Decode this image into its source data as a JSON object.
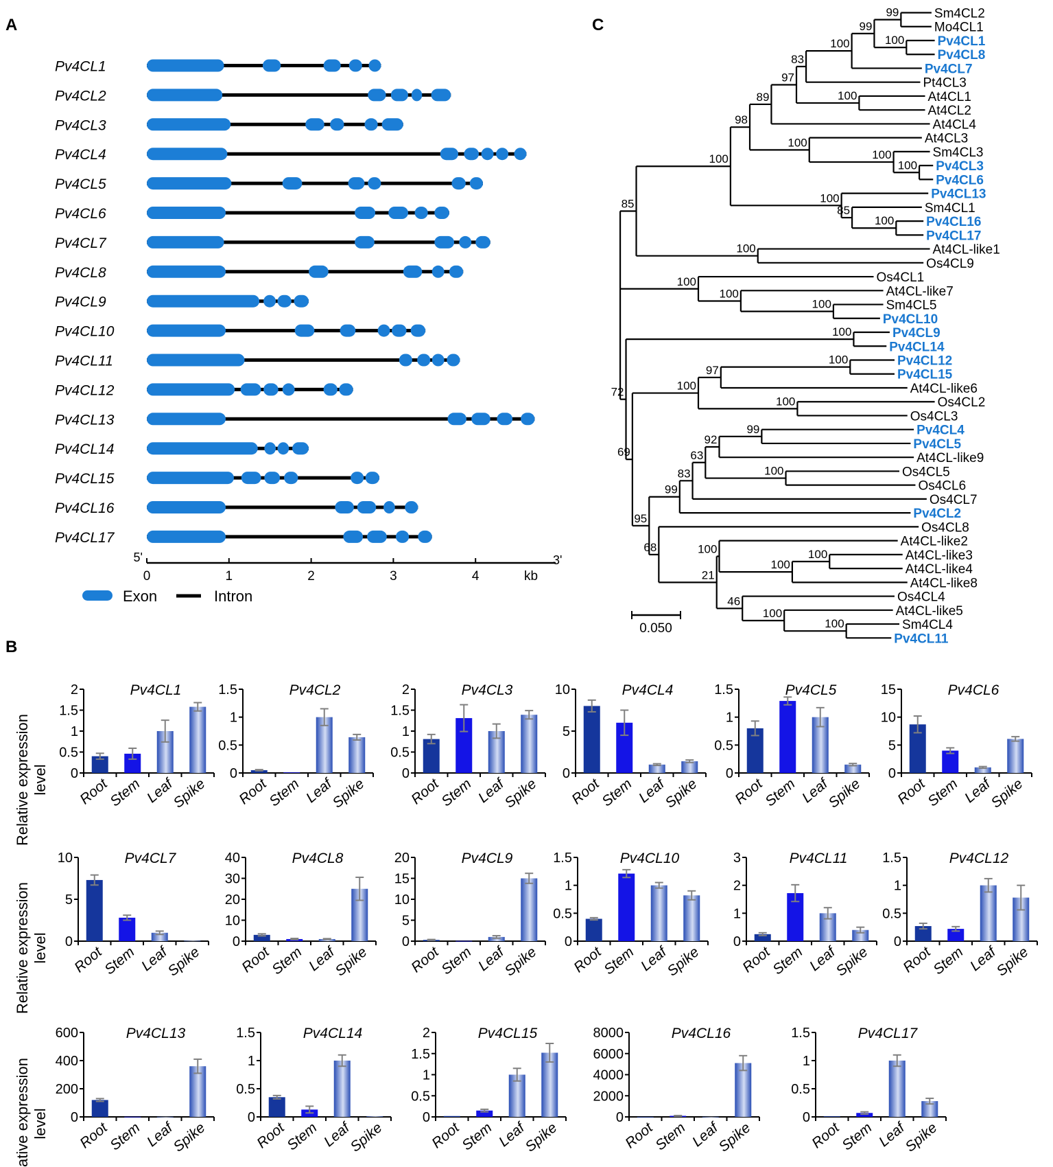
{
  "panel_labels": {
    "a": "A",
    "b": "B",
    "c": "C"
  },
  "colors": {
    "exon": "#1c7ed6",
    "intron": "#000000",
    "highlight": "#1a78d0",
    "root_bar": "#15369c",
    "stem_bar": "#1414e6",
    "gradient_dark": "#2b4fb5",
    "gradient_light": "#d4ddf4",
    "error_bar": "#808080"
  },
  "gene_structure": {
    "scale_start": "5'",
    "scale_end": "3'",
    "unit": "kb",
    "ticks": [
      "0",
      "1",
      "2",
      "3",
      "4"
    ],
    "legend": {
      "exon": "Exon",
      "intron": "Intron"
    },
    "genes": [
      {
        "name": "Pv4CL1",
        "exons": [
          [
            0,
            0.94
          ],
          [
            1.41,
            1.63
          ],
          [
            2.15,
            2.36
          ],
          [
            2.46,
            2.62
          ],
          [
            2.7,
            2.85
          ]
        ]
      },
      {
        "name": "Pv4CL2",
        "exons": [
          [
            0,
            0.92
          ],
          [
            2.69,
            2.91
          ],
          [
            2.97,
            3.18
          ],
          [
            3.22,
            3.35
          ],
          [
            3.46,
            3.7
          ]
        ]
      },
      {
        "name": "Pv4CL3",
        "exons": [
          [
            0,
            1.02
          ],
          [
            1.93,
            2.16
          ],
          [
            2.23,
            2.4
          ],
          [
            2.65,
            2.81
          ],
          [
            2.86,
            3.12
          ]
        ]
      },
      {
        "name": "Pv4CL4",
        "exons": [
          [
            0,
            0.98
          ],
          [
            3.57,
            3.79
          ],
          [
            3.86,
            4.04
          ],
          [
            4.07,
            4.22
          ],
          [
            4.25,
            4.4
          ],
          [
            4.47,
            4.62
          ]
        ]
      },
      {
        "name": "Pv4CL5",
        "exons": [
          [
            0,
            1.03
          ],
          [
            1.65,
            1.89
          ],
          [
            2.45,
            2.65
          ],
          [
            2.69,
            2.85
          ],
          [
            3.71,
            3.88
          ],
          [
            3.93,
            4.09
          ]
        ]
      },
      {
        "name": "Pv4CL6",
        "exons": [
          [
            0,
            0.96
          ],
          [
            2.53,
            2.78
          ],
          [
            2.94,
            3.18
          ],
          [
            3.26,
            3.42
          ],
          [
            3.5,
            3.68
          ]
        ]
      },
      {
        "name": "Pv4CL7",
        "exons": [
          [
            0,
            0.94
          ],
          [
            2.53,
            2.77
          ],
          [
            3.5,
            3.74
          ],
          [
            3.8,
            3.95
          ],
          [
            4.0,
            4.18
          ]
        ]
      },
      {
        "name": "Pv4CL8",
        "exons": [
          [
            0,
            0.96
          ],
          [
            1.97,
            2.21
          ],
          [
            3.12,
            3.35
          ],
          [
            3.47,
            3.62
          ],
          [
            3.68,
            3.85
          ]
        ]
      },
      {
        "name": "Pv4CL9",
        "exons": [
          [
            0,
            1.37
          ],
          [
            1.42,
            1.57
          ],
          [
            1.59,
            1.76
          ],
          [
            1.79,
            1.97
          ]
        ]
      },
      {
        "name": "Pv4CL10",
        "exons": [
          [
            0,
            0.96
          ],
          [
            1.8,
            2.04
          ],
          [
            2.35,
            2.54
          ],
          [
            2.81,
            2.96
          ],
          [
            2.98,
            3.16
          ],
          [
            3.21,
            3.39
          ]
        ]
      },
      {
        "name": "Pv4CL11",
        "exons": [
          [
            0,
            1.19
          ],
          [
            3.07,
            3.23
          ],
          [
            3.29,
            3.45
          ],
          [
            3.47,
            3.62
          ],
          [
            3.65,
            3.81
          ]
        ]
      },
      {
        "name": "Pv4CL12",
        "exons": [
          [
            0,
            1.07
          ],
          [
            1.14,
            1.39
          ],
          [
            1.42,
            1.6
          ],
          [
            1.65,
            1.8
          ],
          [
            2.15,
            2.32
          ],
          [
            2.34,
            2.51
          ]
        ]
      },
      {
        "name": "Pv4CL13",
        "exons": [
          [
            0,
            0.96
          ],
          [
            3.66,
            3.89
          ],
          [
            3.95,
            4.18
          ],
          [
            4.26,
            4.45
          ],
          [
            4.55,
            4.72
          ]
        ]
      },
      {
        "name": "Pv4CL14",
        "exons": [
          [
            0,
            1.35
          ],
          [
            1.43,
            1.57
          ],
          [
            1.59,
            1.73
          ],
          [
            1.77,
            1.97
          ]
        ]
      },
      {
        "name": "Pv4CL15",
        "exons": [
          [
            0,
            1.06
          ],
          [
            1.15,
            1.39
          ],
          [
            1.43,
            1.62
          ],
          [
            1.67,
            1.84
          ],
          [
            2.48,
            2.64
          ],
          [
            2.66,
            2.83
          ]
        ]
      },
      {
        "name": "Pv4CL16",
        "exons": [
          [
            0,
            0.96
          ],
          [
            2.29,
            2.52
          ],
          [
            2.56,
            2.79
          ],
          [
            2.88,
            3.02
          ],
          [
            3.14,
            3.3
          ]
        ]
      },
      {
        "name": "Pv4CL17",
        "exons": [
          [
            0,
            0.96
          ],
          [
            2.39,
            2.63
          ],
          [
            2.68,
            2.92
          ],
          [
            3.03,
            3.19
          ],
          [
            3.3,
            3.47
          ]
        ]
      }
    ]
  },
  "tree": {
    "scale_bar": "0.050",
    "leaves": [
      {
        "name": "Sm4CL2",
        "pv": false
      },
      {
        "name": "Mo4CL1",
        "pv": false
      },
      {
        "name": "Pv4CL1",
        "pv": true
      },
      {
        "name": "Pv4CL8",
        "pv": true
      },
      {
        "name": "Pv4CL7",
        "pv": true
      },
      {
        "name": "Pt4CL3",
        "pv": false
      },
      {
        "name": "At4CL1",
        "pv": false
      },
      {
        "name": "At4CL2",
        "pv": false
      },
      {
        "name": "At4CL4",
        "pv": false
      },
      {
        "name": "At4CL3",
        "pv": false
      },
      {
        "name": "Sm4CL3",
        "pv": false
      },
      {
        "name": "Pv4CL3",
        "pv": true
      },
      {
        "name": "Pv4CL6",
        "pv": true
      },
      {
        "name": "Pv4CL13",
        "pv": true
      },
      {
        "name": "Sm4CL1",
        "pv": false
      },
      {
        "name": "Pv4CL16",
        "pv": true
      },
      {
        "name": "Pv4CL17",
        "pv": true
      },
      {
        "name": "At4CL-like1",
        "pv": false
      },
      {
        "name": "Os4CL9",
        "pv": false
      },
      {
        "name": "Os4CL1",
        "pv": false
      },
      {
        "name": "At4CL-like7",
        "pv": false
      },
      {
        "name": "Sm4CL5",
        "pv": false
      },
      {
        "name": "Pv4CL10",
        "pv": true
      },
      {
        "name": "Pv4CL9",
        "pv": true
      },
      {
        "name": "Pv4CL14",
        "pv": true
      },
      {
        "name": "Pv4CL12",
        "pv": true
      },
      {
        "name": "Pv4CL15",
        "pv": true
      },
      {
        "name": "At4CL-like6",
        "pv": false
      },
      {
        "name": "Os4CL2",
        "pv": false
      },
      {
        "name": "Os4CL3",
        "pv": false
      },
      {
        "name": "Pv4CL4",
        "pv": true
      },
      {
        "name": "Pv4CL5",
        "pv": true
      },
      {
        "name": "At4CL-like9",
        "pv": false
      },
      {
        "name": "Os4CL5",
        "pv": false
      },
      {
        "name": "Os4CL6",
        "pv": false
      },
      {
        "name": "Os4CL7",
        "pv": false
      },
      {
        "name": "Pv4CL2",
        "pv": true
      },
      {
        "name": "Os4CL8",
        "pv": false
      },
      {
        "name": "At4CL-like2",
        "pv": false
      },
      {
        "name": "At4CL-like3",
        "pv": false
      },
      {
        "name": "At4CL-like4",
        "pv": false
      },
      {
        "name": "At4CL-like8",
        "pv": false
      },
      {
        "name": "Os4CL4",
        "pv": false
      },
      {
        "name": "At4CL-like5",
        "pv": false
      },
      {
        "name": "Sm4CL4",
        "pv": false
      },
      {
        "name": "Pv4CL11",
        "pv": true
      }
    ],
    "bootstrap": [
      "99",
      "100",
      "99",
      "100",
      "83",
      "100",
      "97",
      "89",
      "100",
      "100",
      "100",
      "98",
      "100",
      "85",
      "100",
      "100",
      "100",
      "85",
      "100",
      "100",
      "100",
      "100",
      "100",
      "97",
      "100",
      "100",
      "99",
      "92",
      "100",
      "63",
      "83",
      "99",
      "100",
      "100",
      "100",
      "100",
      "100",
      "46",
      "21",
      "68",
      "95",
      "69",
      "72"
    ]
  },
  "chart_data": [
    {
      "type": "bar",
      "title": "Pv4CL1",
      "categories": [
        "Root",
        "Stem",
        "Leaf",
        "Spike"
      ],
      "values": [
        0.4,
        0.46,
        1.0,
        1.58
      ],
      "errors": [
        0.07,
        0.13,
        0.26,
        0.1
      ],
      "ylim": [
        0,
        2
      ],
      "yticks": [
        "0",
        "0.5",
        "1",
        "1.5",
        "2"
      ],
      "ylabel": "Relative expression level"
    },
    {
      "type": "bar",
      "title": "Pv4CL2",
      "categories": [
        "Root",
        "Stem",
        "Leaf",
        "Spike"
      ],
      "values": [
        0.05,
        0.01,
        1.0,
        0.64
      ],
      "errors": [
        0.01,
        0,
        0.15,
        0.05
      ],
      "ylim": [
        0,
        1.5
      ],
      "yticks": [
        "0",
        "0.5",
        "1",
        "1.5"
      ],
      "ylabel": ""
    },
    {
      "type": "bar",
      "title": "Pv4CL3",
      "categories": [
        "Root",
        "Stem",
        "Leaf",
        "Spike"
      ],
      "values": [
        0.81,
        1.31,
        1.0,
        1.39
      ],
      "errors": [
        0.11,
        0.32,
        0.17,
        0.1
      ],
      "ylim": [
        0,
        2
      ],
      "yticks": [
        "0",
        "0.5",
        "1",
        "1.5",
        "2"
      ],
      "ylabel": ""
    },
    {
      "type": "bar",
      "title": "Pv4CL4",
      "categories": [
        "Root",
        "Stem",
        "Leaf",
        "Spike"
      ],
      "values": [
        8.0,
        6.0,
        1.0,
        1.4
      ],
      "errors": [
        0.7,
        1.5,
        0.1,
        0.15
      ],
      "ylim": [
        0,
        10
      ],
      "yticks": [
        "0",
        "5",
        "10"
      ],
      "ylabel": ""
    },
    {
      "type": "bar",
      "title": "Pv4CL5",
      "categories": [
        "Root",
        "Stem",
        "Leaf",
        "Spike"
      ],
      "values": [
        0.8,
        1.29,
        1.0,
        0.15
      ],
      "errors": [
        0.13,
        0.07,
        0.17,
        0.02
      ],
      "ylim": [
        0,
        1.5
      ],
      "yticks": [
        "0",
        "0.5",
        "1",
        "1.5"
      ],
      "ylabel": ""
    },
    {
      "type": "bar",
      "title": "Pv4CL6",
      "categories": [
        "Root",
        "Stem",
        "Leaf",
        "Spike"
      ],
      "values": [
        8.7,
        4.0,
        1.0,
        6.1
      ],
      "errors": [
        1.5,
        0.5,
        0.15,
        0.4
      ],
      "ylim": [
        0,
        15
      ],
      "yticks": [
        "0",
        "5",
        "10",
        "15"
      ],
      "ylabel": ""
    },
    {
      "type": "bar",
      "title": "Pv4CL7",
      "categories": [
        "Root",
        "Stem",
        "Leaf",
        "Spike"
      ],
      "values": [
        7.3,
        2.8,
        1.0,
        0.05
      ],
      "errors": [
        0.6,
        0.3,
        0.2,
        0
      ],
      "ylim": [
        0,
        10
      ],
      "yticks": [
        "0",
        "5",
        "10"
      ],
      "ylabel": "Relative expression level"
    },
    {
      "type": "bar",
      "title": "Pv4CL8",
      "categories": [
        "Root",
        "Stem",
        "Leaf",
        "Spike"
      ],
      "values": [
        3.0,
        1.0,
        1.0,
        25.0
      ],
      "errors": [
        0.5,
        0.3,
        0.2,
        5.5
      ],
      "ylim": [
        0,
        40
      ],
      "yticks": [
        "0",
        "10",
        "20",
        "30",
        "40"
      ],
      "ylabel": ""
    },
    {
      "type": "bar",
      "title": "Pv4CL9",
      "categories": [
        "Root",
        "Stem",
        "Leaf",
        "Spike"
      ],
      "values": [
        0.3,
        0.05,
        1.0,
        15.0
      ],
      "errors": [
        0.1,
        0,
        0.3,
        1.2
      ],
      "ylim": [
        0,
        20
      ],
      "yticks": [
        "0",
        "5",
        "10",
        "15",
        "20"
      ],
      "ylabel": ""
    },
    {
      "type": "bar",
      "title": "Pv4CL10",
      "categories": [
        "Root",
        "Stem",
        "Leaf",
        "Spike"
      ],
      "values": [
        0.4,
        1.21,
        1.0,
        0.82
      ],
      "errors": [
        0.02,
        0.07,
        0.05,
        0.08
      ],
      "ylim": [
        0,
        1.5
      ],
      "yticks": [
        "0",
        "0.5",
        "1",
        "1.5"
      ],
      "ylabel": ""
    },
    {
      "type": "bar",
      "title": "Pv4CL11",
      "categories": [
        "Root",
        "Stem",
        "Leaf",
        "Spike"
      ],
      "values": [
        0.25,
        1.72,
        1.0,
        0.4
      ],
      "errors": [
        0.05,
        0.3,
        0.2,
        0.1
      ],
      "ylim": [
        0,
        3
      ],
      "yticks": [
        "0",
        "1",
        "2",
        "3"
      ],
      "ylabel": ""
    },
    {
      "type": "bar",
      "title": "Pv4CL12",
      "categories": [
        "Root",
        "Stem",
        "Leaf",
        "Spike"
      ],
      "values": [
        0.27,
        0.22,
        1.0,
        0.78
      ],
      "errors": [
        0.05,
        0.04,
        0.12,
        0.22
      ],
      "ylim": [
        0,
        1.5
      ],
      "yticks": [
        "0",
        "0.5",
        "1",
        "1.5"
      ],
      "ylabel": ""
    },
    {
      "type": "bar",
      "title": "Pv4CL13",
      "categories": [
        "Root",
        "Stem",
        "Leaf",
        "Spike"
      ],
      "values": [
        120,
        1,
        1,
        360
      ],
      "errors": [
        10,
        0,
        0,
        50
      ],
      "ylim": [
        0,
        600
      ],
      "yticks": [
        "0",
        "200",
        "400",
        "600"
      ],
      "ylabel": "Relative expression level"
    },
    {
      "type": "bar",
      "title": "Pv4CL14",
      "categories": [
        "Root",
        "Stem",
        "Leaf",
        "Spike"
      ],
      "values": [
        0.35,
        0.13,
        1.0,
        0.01
      ],
      "errors": [
        0.03,
        0.06,
        0.1,
        0
      ],
      "ylim": [
        0,
        1.5
      ],
      "yticks": [
        "0",
        "0.5",
        "1",
        "1.5"
      ],
      "ylabel": ""
    },
    {
      "type": "bar",
      "title": "Pv4CL15",
      "categories": [
        "Root",
        "Stem",
        "Leaf",
        "Spike"
      ],
      "values": [
        0.02,
        0.15,
        1.0,
        1.52
      ],
      "errors": [
        0,
        0.03,
        0.15,
        0.22
      ],
      "ylim": [
        0,
        2
      ],
      "yticks": [
        "0",
        "0.5",
        "1",
        "1.5",
        "2"
      ],
      "ylabel": ""
    },
    {
      "type": "bar",
      "title": "Pv4CL16",
      "categories": [
        "Root",
        "Stem",
        "Leaf",
        "Spike"
      ],
      "values": [
        5,
        100,
        10,
        5100
      ],
      "errors": [
        0,
        30,
        0,
        700
      ],
      "ylim": [
        0,
        8000
      ],
      "yticks": [
        "0",
        "2000",
        "4000",
        "6000",
        "8000"
      ],
      "ylabel": ""
    },
    {
      "type": "bar",
      "title": "Pv4CL17",
      "categories": [
        "Root",
        "Stem",
        "Leaf",
        "Spike"
      ],
      "values": [
        0.01,
        0.07,
        1.0,
        0.28
      ],
      "errors": [
        0,
        0.02,
        0.1,
        0.05
      ],
      "ylim": [
        0,
        1.5
      ],
      "yticks": [
        "0",
        "0.5",
        "1",
        "1.5"
      ],
      "ylabel": ""
    }
  ],
  "ylabel_lines": [
    "Relative expression",
    "level"
  ]
}
